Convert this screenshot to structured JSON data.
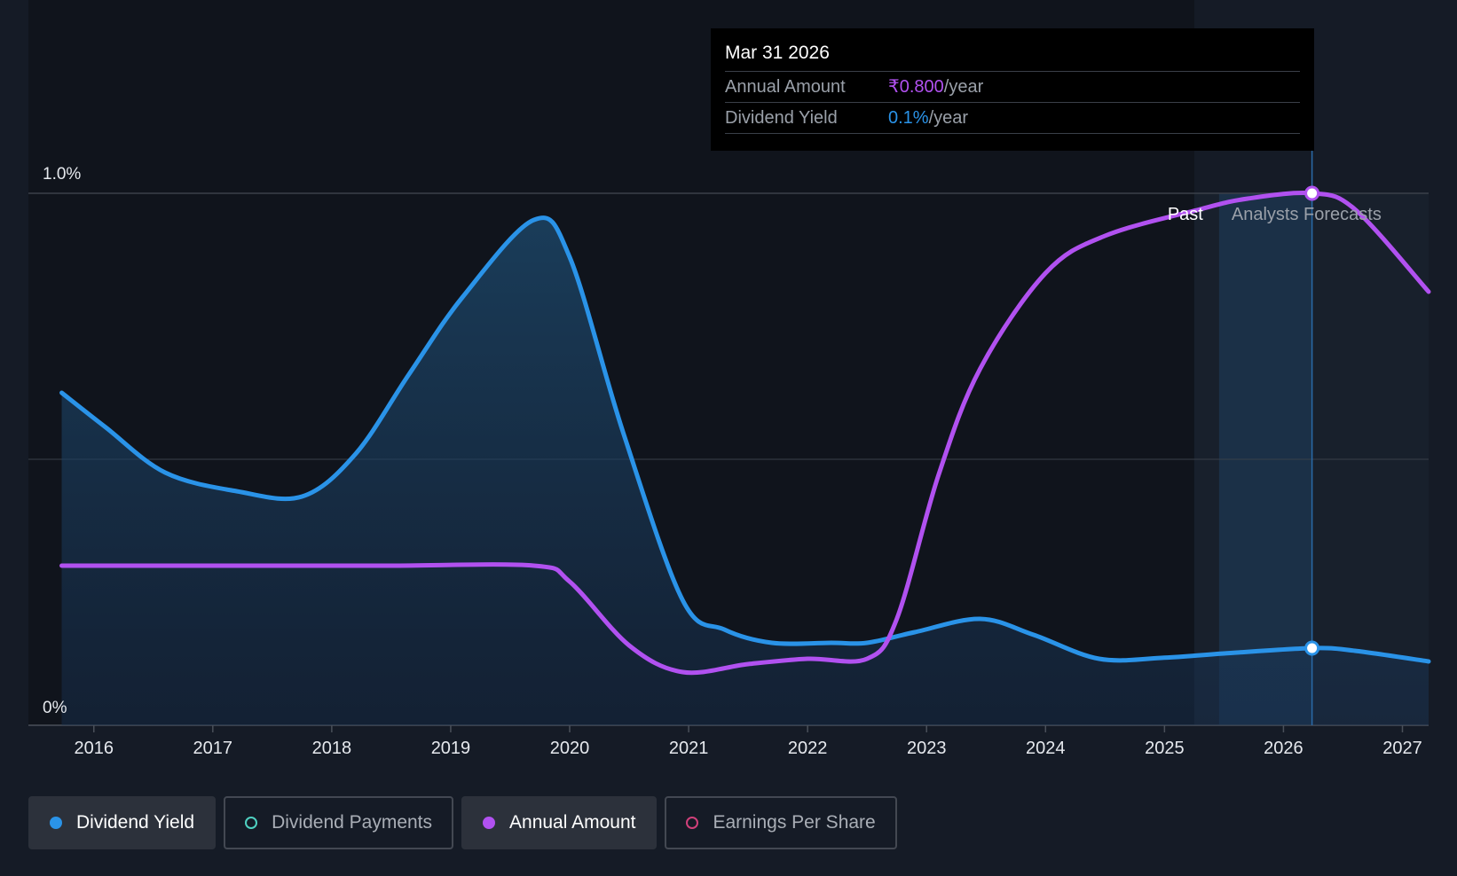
{
  "colors": {
    "background": "#151b26",
    "yield": "#2a93e8",
    "annual": "#b151f0",
    "payments": "#4fd1c1",
    "eps": "#d0407a",
    "grid": "#3a404a"
  },
  "tooltip": {
    "date": "Mar 31 2026",
    "annual_label": "Annual Amount",
    "annual_value": "₹0.800",
    "annual_unit": "/year",
    "yield_label": "Dividend Yield",
    "yield_value": "0.1%",
    "yield_unit": "/year"
  },
  "regions": {
    "past": "Past",
    "forecast": "Analysts Forecasts"
  },
  "legend": [
    {
      "label": "Dividend Yield",
      "color": "#2a93e8",
      "active": true,
      "filled": true
    },
    {
      "label": "Dividend Payments",
      "color": "#4fd1c1",
      "active": false,
      "filled": false
    },
    {
      "label": "Annual Amount",
      "color": "#b151f0",
      "active": true,
      "filled": true
    },
    {
      "label": "Earnings Per Share",
      "color": "#d0407a",
      "active": false,
      "filled": false
    }
  ],
  "chart_data": {
    "type": "line",
    "x_ticks": [
      "2016",
      "2017",
      "2018",
      "2019",
      "2020",
      "2021",
      "2022",
      "2023",
      "2024",
      "2025",
      "2026",
      "2027"
    ],
    "x_range": [
      2015.45,
      2027.22
    ],
    "y_ticks": [
      "0%",
      "1.0%"
    ],
    "ylim": [
      0,
      1.0
    ],
    "grid": true,
    "forecast_start": 2025.25,
    "highlight_x": 2026.24,
    "series": [
      {
        "name": "Dividend Yield",
        "unit": "%",
        "area": true,
        "points": [
          [
            2015.73,
            0.625
          ],
          [
            2016.1,
            0.56
          ],
          [
            2016.6,
            0.475
          ],
          [
            2017.2,
            0.44
          ],
          [
            2017.75,
            0.43
          ],
          [
            2018.2,
            0.51
          ],
          [
            2018.65,
            0.66
          ],
          [
            2019.1,
            0.805
          ],
          [
            2019.7,
            0.95
          ],
          [
            2020.0,
            0.88
          ],
          [
            2020.45,
            0.55
          ],
          [
            2020.95,
            0.235
          ],
          [
            2021.3,
            0.18
          ],
          [
            2021.7,
            0.155
          ],
          [
            2022.2,
            0.155
          ],
          [
            2022.5,
            0.155
          ],
          [
            2022.9,
            0.175
          ],
          [
            2023.45,
            0.2
          ],
          [
            2023.9,
            0.17
          ],
          [
            2024.45,
            0.125
          ],
          [
            2025.0,
            0.127
          ],
          [
            2025.5,
            0.135
          ],
          [
            2026.24,
            0.145
          ],
          [
            2026.6,
            0.14
          ],
          [
            2027.22,
            0.12
          ]
        ]
      },
      {
        "name": "Annual Amount",
        "area": false,
        "points": [
          [
            2015.73,
            0.3
          ],
          [
            2016.5,
            0.3
          ],
          [
            2017.5,
            0.3
          ],
          [
            2018.5,
            0.3
          ],
          [
            2019.7,
            0.3
          ],
          [
            2020.0,
            0.27
          ],
          [
            2020.5,
            0.15
          ],
          [
            2020.95,
            0.1
          ],
          [
            2021.5,
            0.115
          ],
          [
            2022.0,
            0.125
          ],
          [
            2022.5,
            0.125
          ],
          [
            2022.75,
            0.2
          ],
          [
            2023.1,
            0.47
          ],
          [
            2023.45,
            0.67
          ],
          [
            2024.0,
            0.85
          ],
          [
            2024.5,
            0.92
          ],
          [
            2025.3,
            0.97
          ],
          [
            2025.7,
            0.99
          ],
          [
            2026.24,
            1.0
          ],
          [
            2026.6,
            0.97
          ],
          [
            2027.22,
            0.815
          ]
        ]
      }
    ]
  }
}
